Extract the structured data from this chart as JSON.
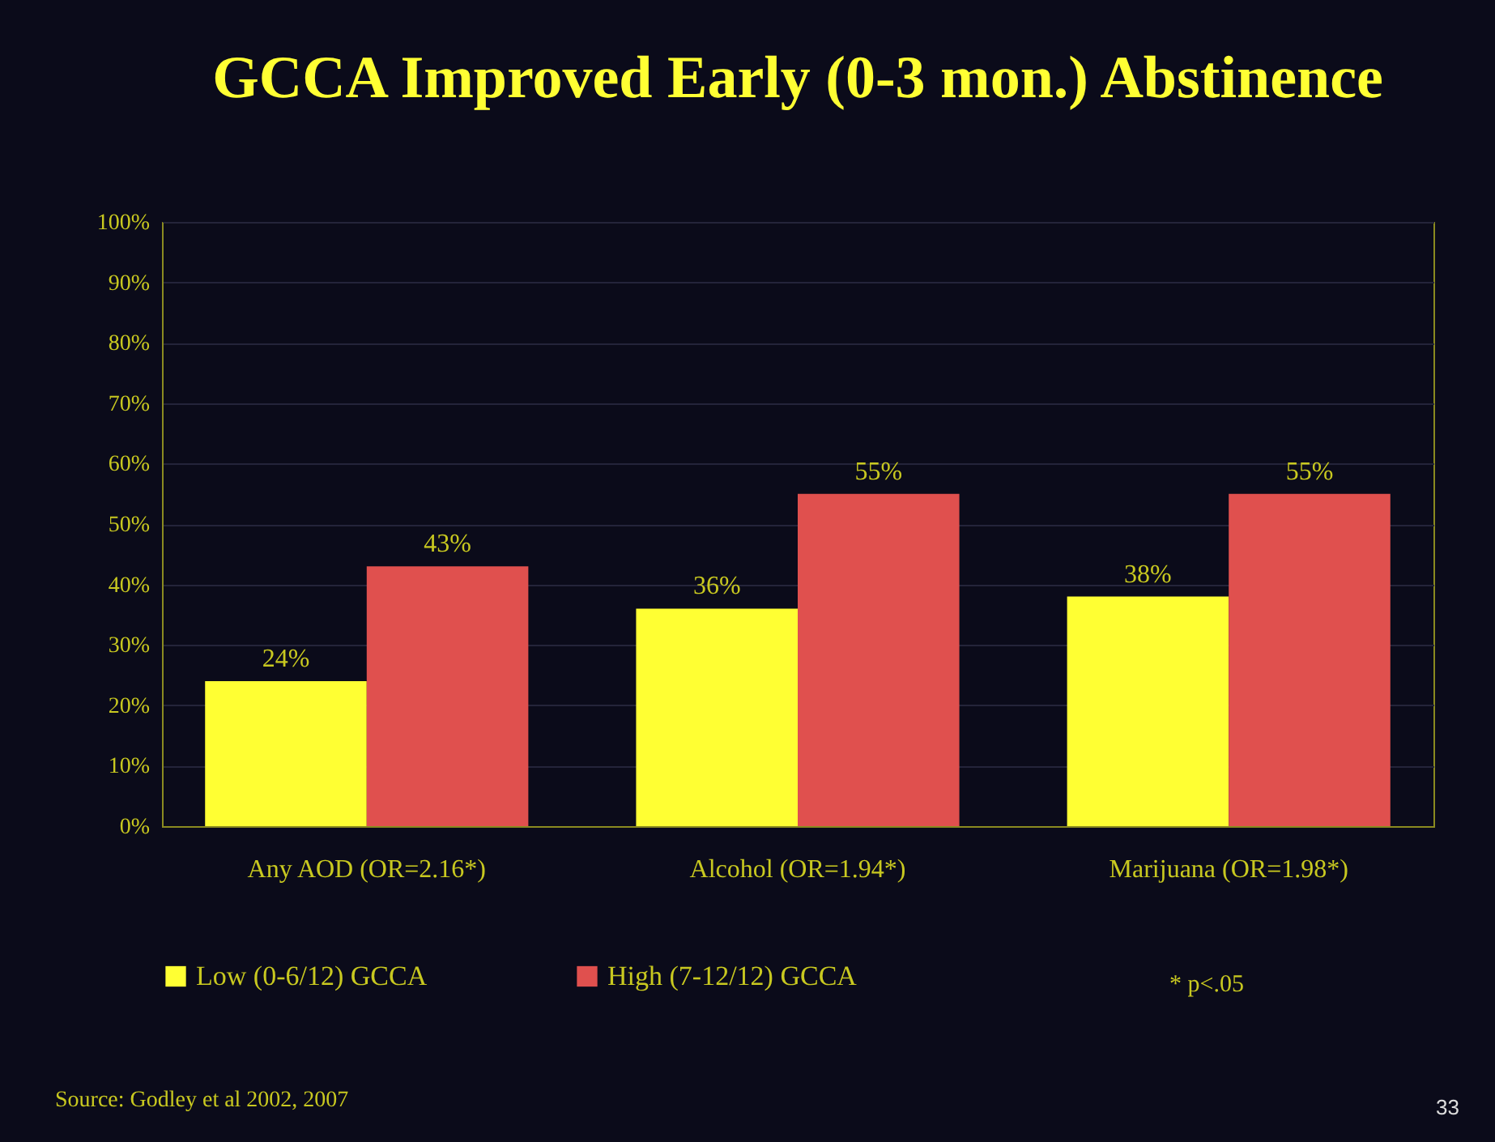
{
  "chart_data": {
    "type": "bar",
    "title": "GCCA Improved Early (0-3 mon.) Abstinence",
    "categories": [
      "Any AOD (OR=2.16*)",
      "Alcohol (OR=1.94*)",
      "Marijuana (OR=1.98*)"
    ],
    "series": [
      {
        "name": "Low (0-6/12) GCCA",
        "color": "#ffff33",
        "values": [
          24,
          36,
          38
        ],
        "value_labels": [
          "24%",
          "36%",
          "38%"
        ]
      },
      {
        "name": "High (7-12/12) GCCA",
        "color": "#e0504e",
        "values": [
          43,
          55,
          55
        ],
        "value_labels": [
          "43%",
          "55%",
          "55%"
        ]
      }
    ],
    "ylim": [
      0,
      100
    ],
    "yticks": [
      {
        "value": 0,
        "label": "0%"
      },
      {
        "value": 10,
        "label": "10%"
      },
      {
        "value": 20,
        "label": "20%"
      },
      {
        "value": 30,
        "label": "30%"
      },
      {
        "value": 40,
        "label": "40%"
      },
      {
        "value": 50,
        "label": "50%"
      },
      {
        "value": 60,
        "label": "60%"
      },
      {
        "value": 70,
        "label": "70%"
      },
      {
        "value": 80,
        "label": "80%"
      },
      {
        "value": 90,
        "label": "90%"
      },
      {
        "value": 100,
        "label": "100%"
      }
    ],
    "grid": "y",
    "legend": "bottom",
    "annotations": [
      "* p<.05",
      "Source: Godley et al 2002, 2007",
      "33"
    ]
  }
}
